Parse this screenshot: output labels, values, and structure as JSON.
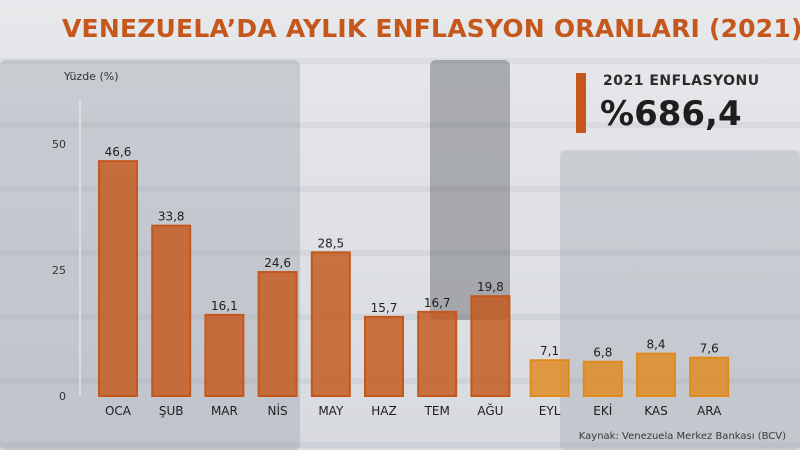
{
  "title": "VENEZUELA’DA AYLIK ENFLASYON ORANLARI (2021)",
  "kpi": {
    "label": "2021 ENFLASYONU",
    "value": "%686,4"
  },
  "source": "Kaynak: Venezuela Merkez Bankası (BCV)",
  "colors": {
    "accent": "#c4581c",
    "bar_dark": "#c4581c",
    "bar_light": "#e08a1e",
    "text": "#1e1e1e"
  },
  "chart_data": {
    "type": "bar",
    "ylabel": "Yüzde (%)",
    "ylim": [
      0,
      50
    ],
    "yticks": [
      0,
      25,
      50
    ],
    "categories": [
      "OCA",
      "ŞUB",
      "MAR",
      "NİS",
      "MAY",
      "HAZ",
      "TEM",
      "AĞU",
      "EYL",
      "EKİ",
      "KAS",
      "ARA"
    ],
    "values": [
      46.6,
      33.8,
      16.1,
      24.6,
      28.5,
      15.7,
      16.7,
      19.8,
      7.1,
      6.8,
      8.4,
      7.6
    ],
    "value_labels": [
      "46,6",
      "33,8",
      "16,1",
      "24,6",
      "28,5",
      "15,7",
      "16,7",
      "19,8",
      "7,1",
      "6,8",
      "8,4",
      "7,6"
    ],
    "bar_colors": [
      "#c4581c",
      "#c4581c",
      "#c4581c",
      "#c4581c",
      "#c4581c",
      "#c4581c",
      "#c4581c",
      "#c4581c",
      "#e08a1e",
      "#e08a1e",
      "#e08a1e",
      "#e08a1e"
    ],
    "grid": false
  }
}
